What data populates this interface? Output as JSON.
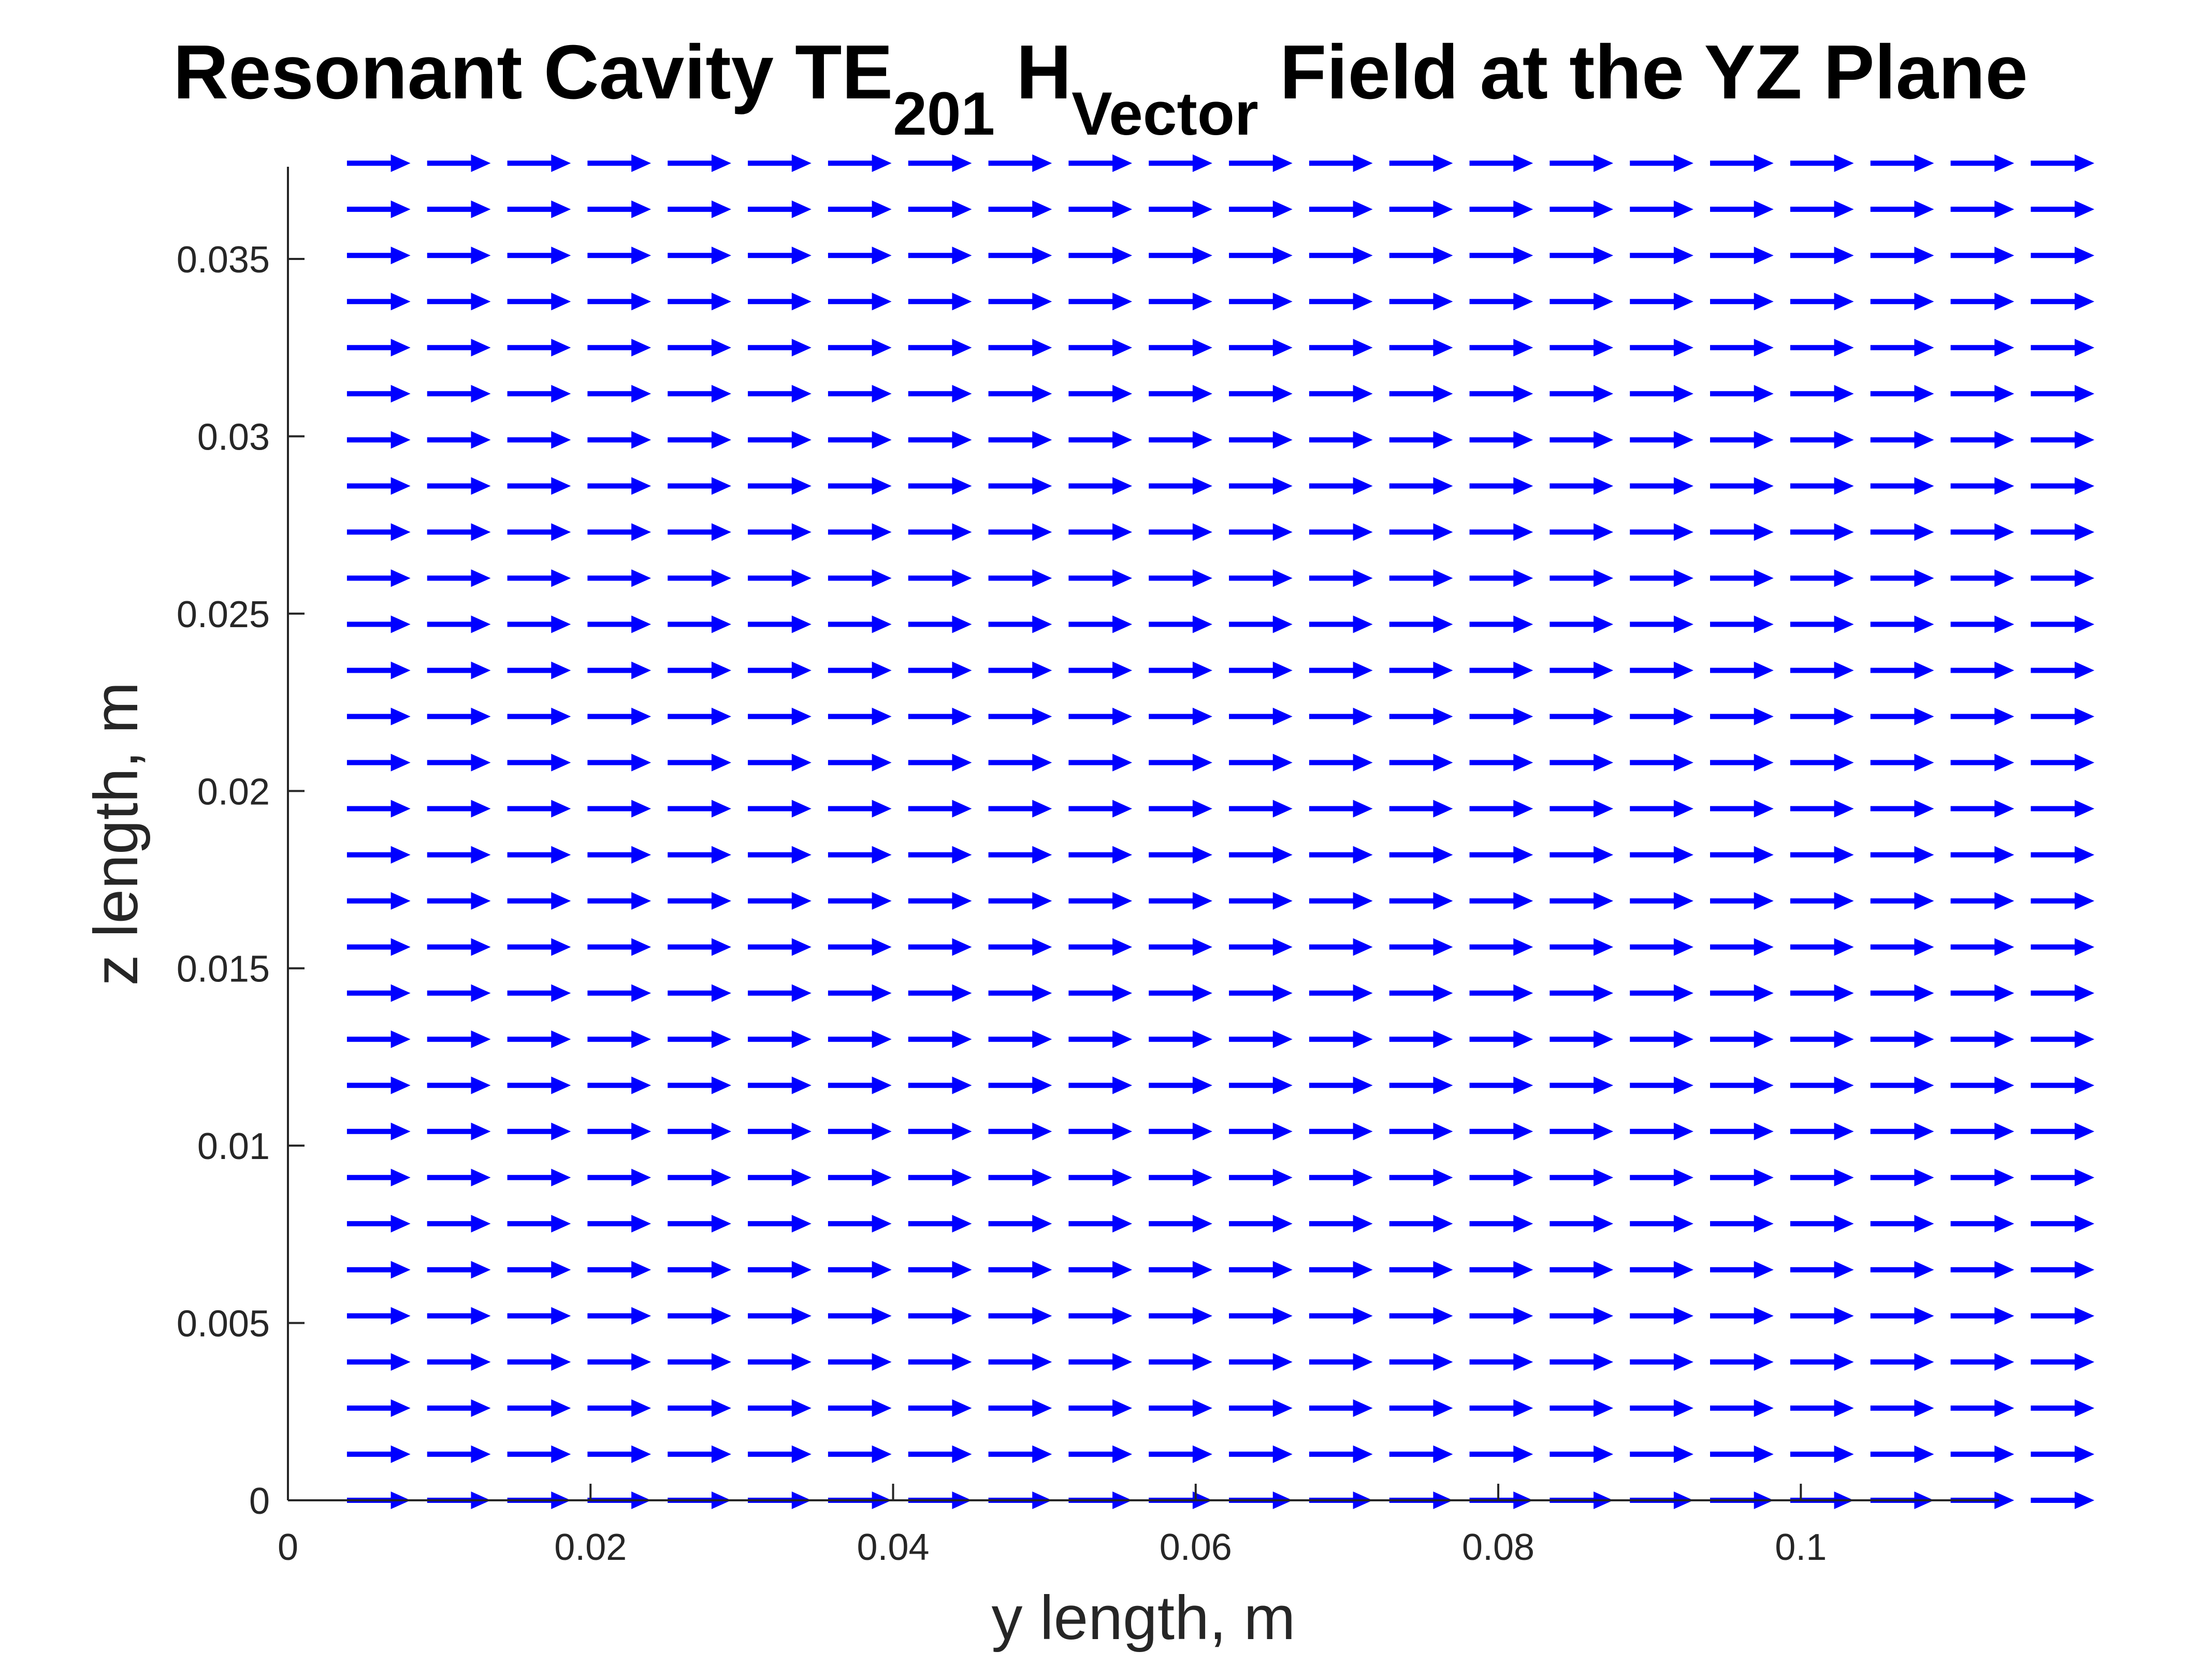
{
  "chart_data": {
    "type": "quiver",
    "title": {
      "prefix": "Resonant Cavity TE",
      "sub1": "201",
      "middle": " H",
      "sub2": "Vector",
      "suffix": " Field at the YZ Plane"
    },
    "xlabel": "y length, m",
    "ylabel": "z length, m",
    "xlim": [
      0,
      0.1131
    ],
    "ylim": [
      0,
      0.0376
    ],
    "xticks": [
      0,
      0.02,
      0.04,
      0.06,
      0.08,
      0.1
    ],
    "xtick_labels": [
      "0",
      "0.02",
      "0.04",
      "0.06",
      "0.08",
      "0.1"
    ],
    "yticks": [
      0,
      0.005,
      0.01,
      0.015,
      0.02,
      0.025,
      0.03,
      0.035
    ],
    "ytick_labels": [
      "0",
      "0.005",
      "0.01",
      "0.015",
      "0.02",
      "0.025",
      "0.03",
      "0.035"
    ],
    "grid": false,
    "arrow_color": "#0000ff",
    "field": {
      "y_start": 0.0039,
      "y_step": 0.0053,
      "y_count": 22,
      "z_start": 0.0,
      "z_step": 0.0013,
      "z_count": 30,
      "direction": "+y",
      "arrow_length": 0.0042
    }
  }
}
